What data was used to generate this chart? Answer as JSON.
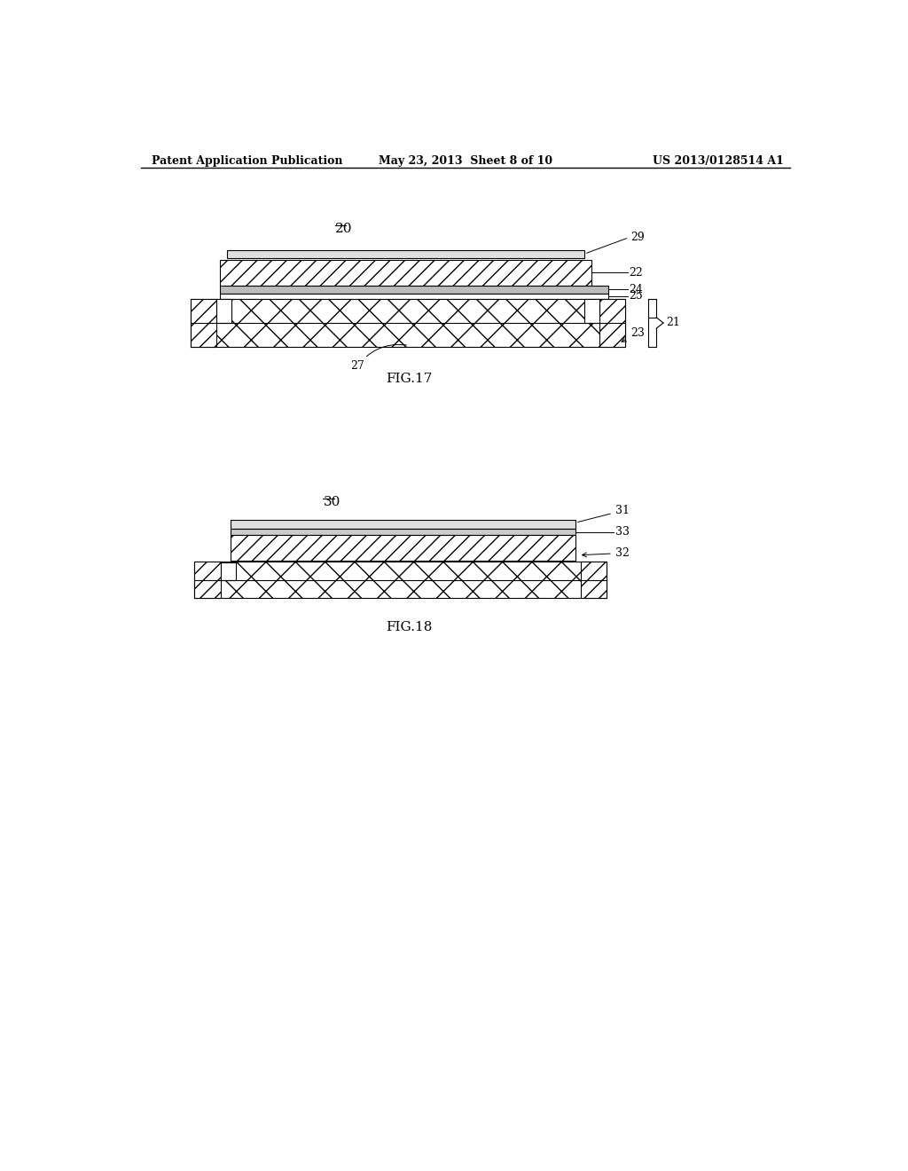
{
  "bg_color": "#ffffff",
  "header_left": "Patent Application Publication",
  "header_mid": "May 23, 2013  Sheet 8 of 10",
  "header_right": "US 2013/0128514 A1",
  "fig17_label": "FIG.17",
  "fig18_label": "FIG.18",
  "fig17_number": "20",
  "fig18_number": "30",
  "line_color": "#000000"
}
